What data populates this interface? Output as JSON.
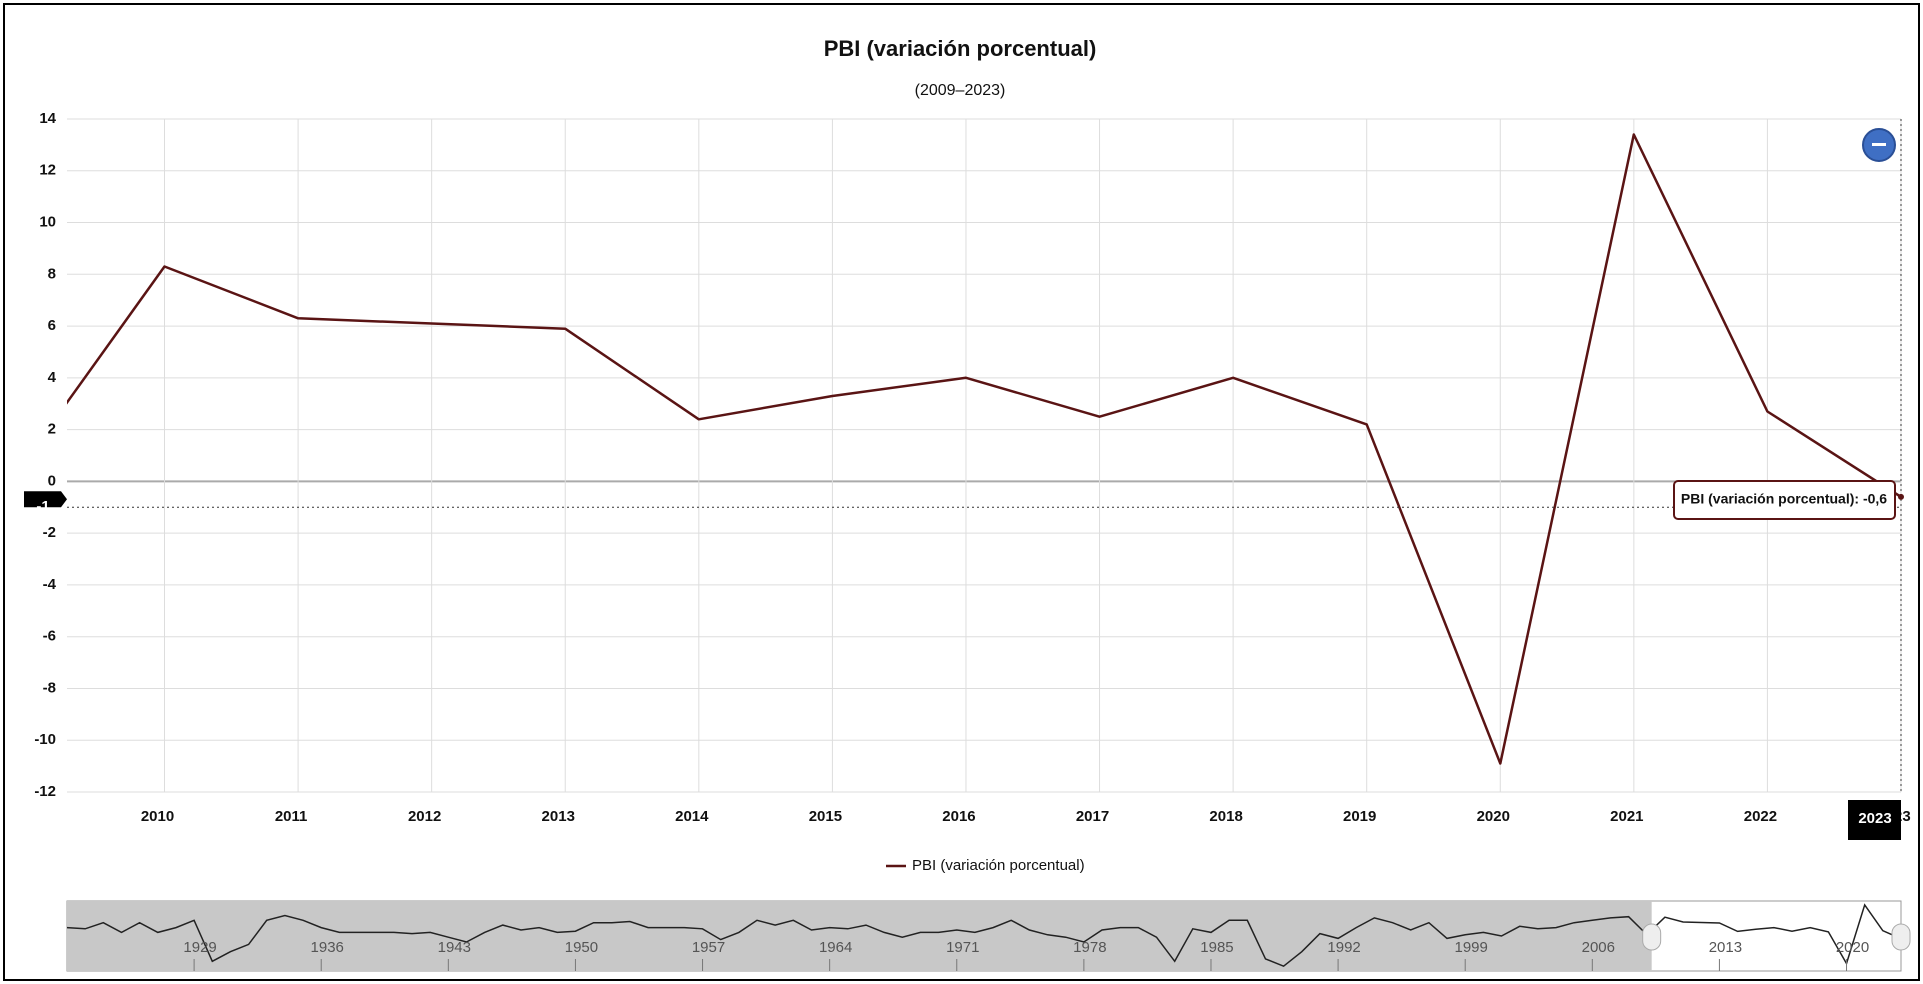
{
  "chart_data": [
    {
      "type": "line",
      "title": "PBI (variación porcentual)",
      "subtitle": "(2009–2023)",
      "x": [
        2009,
        2010,
        2011,
        2012,
        2013,
        2014,
        2015,
        2016,
        2017,
        2018,
        2019,
        2020,
        2021,
        2022,
        2023
      ],
      "series": [
        {
          "name": "PBI (variación porcentual)",
          "color": "#5a1414",
          "values": [
            1.1,
            8.3,
            6.3,
            6.1,
            5.9,
            2.4,
            3.3,
            4.0,
            2.5,
            4.0,
            2.2,
            -10.9,
            13.4,
            2.7,
            -0.6
          ]
        }
      ],
      "xlim": [
        2009.27,
        2023
      ],
      "xticks": [
        2010,
        2011,
        2012,
        2013,
        2014,
        2015,
        2016,
        2017,
        2018,
        2019,
        2020,
        2021,
        2022,
        2023
      ],
      "ylim": [
        -12,
        14
      ],
      "yticks": [
        -12,
        -10,
        -8,
        -6,
        -4,
        -2,
        0,
        2,
        4,
        6,
        8,
        10,
        12,
        14
      ],
      "grid": true,
      "crosshair": {
        "x": 2023,
        "y": -1
      },
      "tooltip": "PBI (variación porcentual): -0,6"
    },
    {
      "type": "navigator",
      "x": [
        1922,
        1923,
        1924,
        1925,
        1926,
        1927,
        1928,
        1929,
        1930,
        1931,
        1932,
        1933,
        1934,
        1935,
        1936,
        1937,
        1938,
        1939,
        1940,
        1941,
        1942,
        1943,
        1944,
        1945,
        1946,
        1947,
        1948,
        1949,
        1950,
        1951,
        1952,
        1953,
        1954,
        1955,
        1956,
        1957,
        1958,
        1959,
        1960,
        1961,
        1962,
        1963,
        1964,
        1965,
        1966,
        1967,
        1968,
        1969,
        1970,
        1971,
        1972,
        1973,
        1974,
        1975,
        1976,
        1977,
        1978,
        1979,
        1980,
        1981,
        1982,
        1983,
        1984,
        1985,
        1986,
        1987,
        1988,
        1989,
        1990,
        1991,
        1992,
        1993,
        1994,
        1995,
        1996,
        1997,
        1998,
        1999,
        2000,
        2001,
        2002,
        2003,
        2004,
        2005,
        2006,
        2007,
        2008,
        2009,
        2010,
        2011,
        2012,
        2013,
        2014,
        2015,
        2016,
        2017,
        2018,
        2019,
        2020,
        2021,
        2022,
        2023
      ],
      "values": [
        4,
        3.5,
        6,
        2,
        6,
        2,
        4,
        7,
        -10,
        -6,
        -3,
        7,
        9,
        7,
        4,
        2,
        2,
        2,
        2,
        1.5,
        2,
        0,
        -2,
        2,
        5,
        3,
        4,
        2,
        2.5,
        6,
        6,
        6.5,
        4,
        4,
        4,
        3.5,
        -1,
        2,
        7,
        5,
        7,
        3,
        4,
        3.5,
        5,
        2,
        0,
        2,
        2,
        3,
        2,
        4,
        7,
        3,
        1,
        0,
        -2,
        3,
        4,
        4,
        0,
        -10,
        3.5,
        2,
        7,
        7,
        -9,
        -12,
        -6,
        1.5,
        -0.5,
        4,
        8,
        6,
        3,
        6,
        -0.5,
        1,
        2,
        0.5,
        4.5,
        3.5,
        4,
        6,
        7,
        8,
        8.5,
        1.1,
        8.3,
        6.3,
        6.1,
        5.9,
        2.4,
        3.3,
        4.0,
        2.5,
        4.0,
        2.2,
        -10.9,
        13.4,
        2.7,
        -0.6
      ],
      "color": "#222222",
      "xlim": [
        1922,
        2023
      ],
      "ylim": [
        -14,
        15
      ],
      "xticks": [
        1929,
        1936,
        1943,
        1950,
        1957,
        1964,
        1971,
        1978,
        1985,
        1992,
        1999,
        2006,
        2013,
        2020
      ],
      "selection": [
        2009.27,
        2023
      ]
    }
  ]
}
